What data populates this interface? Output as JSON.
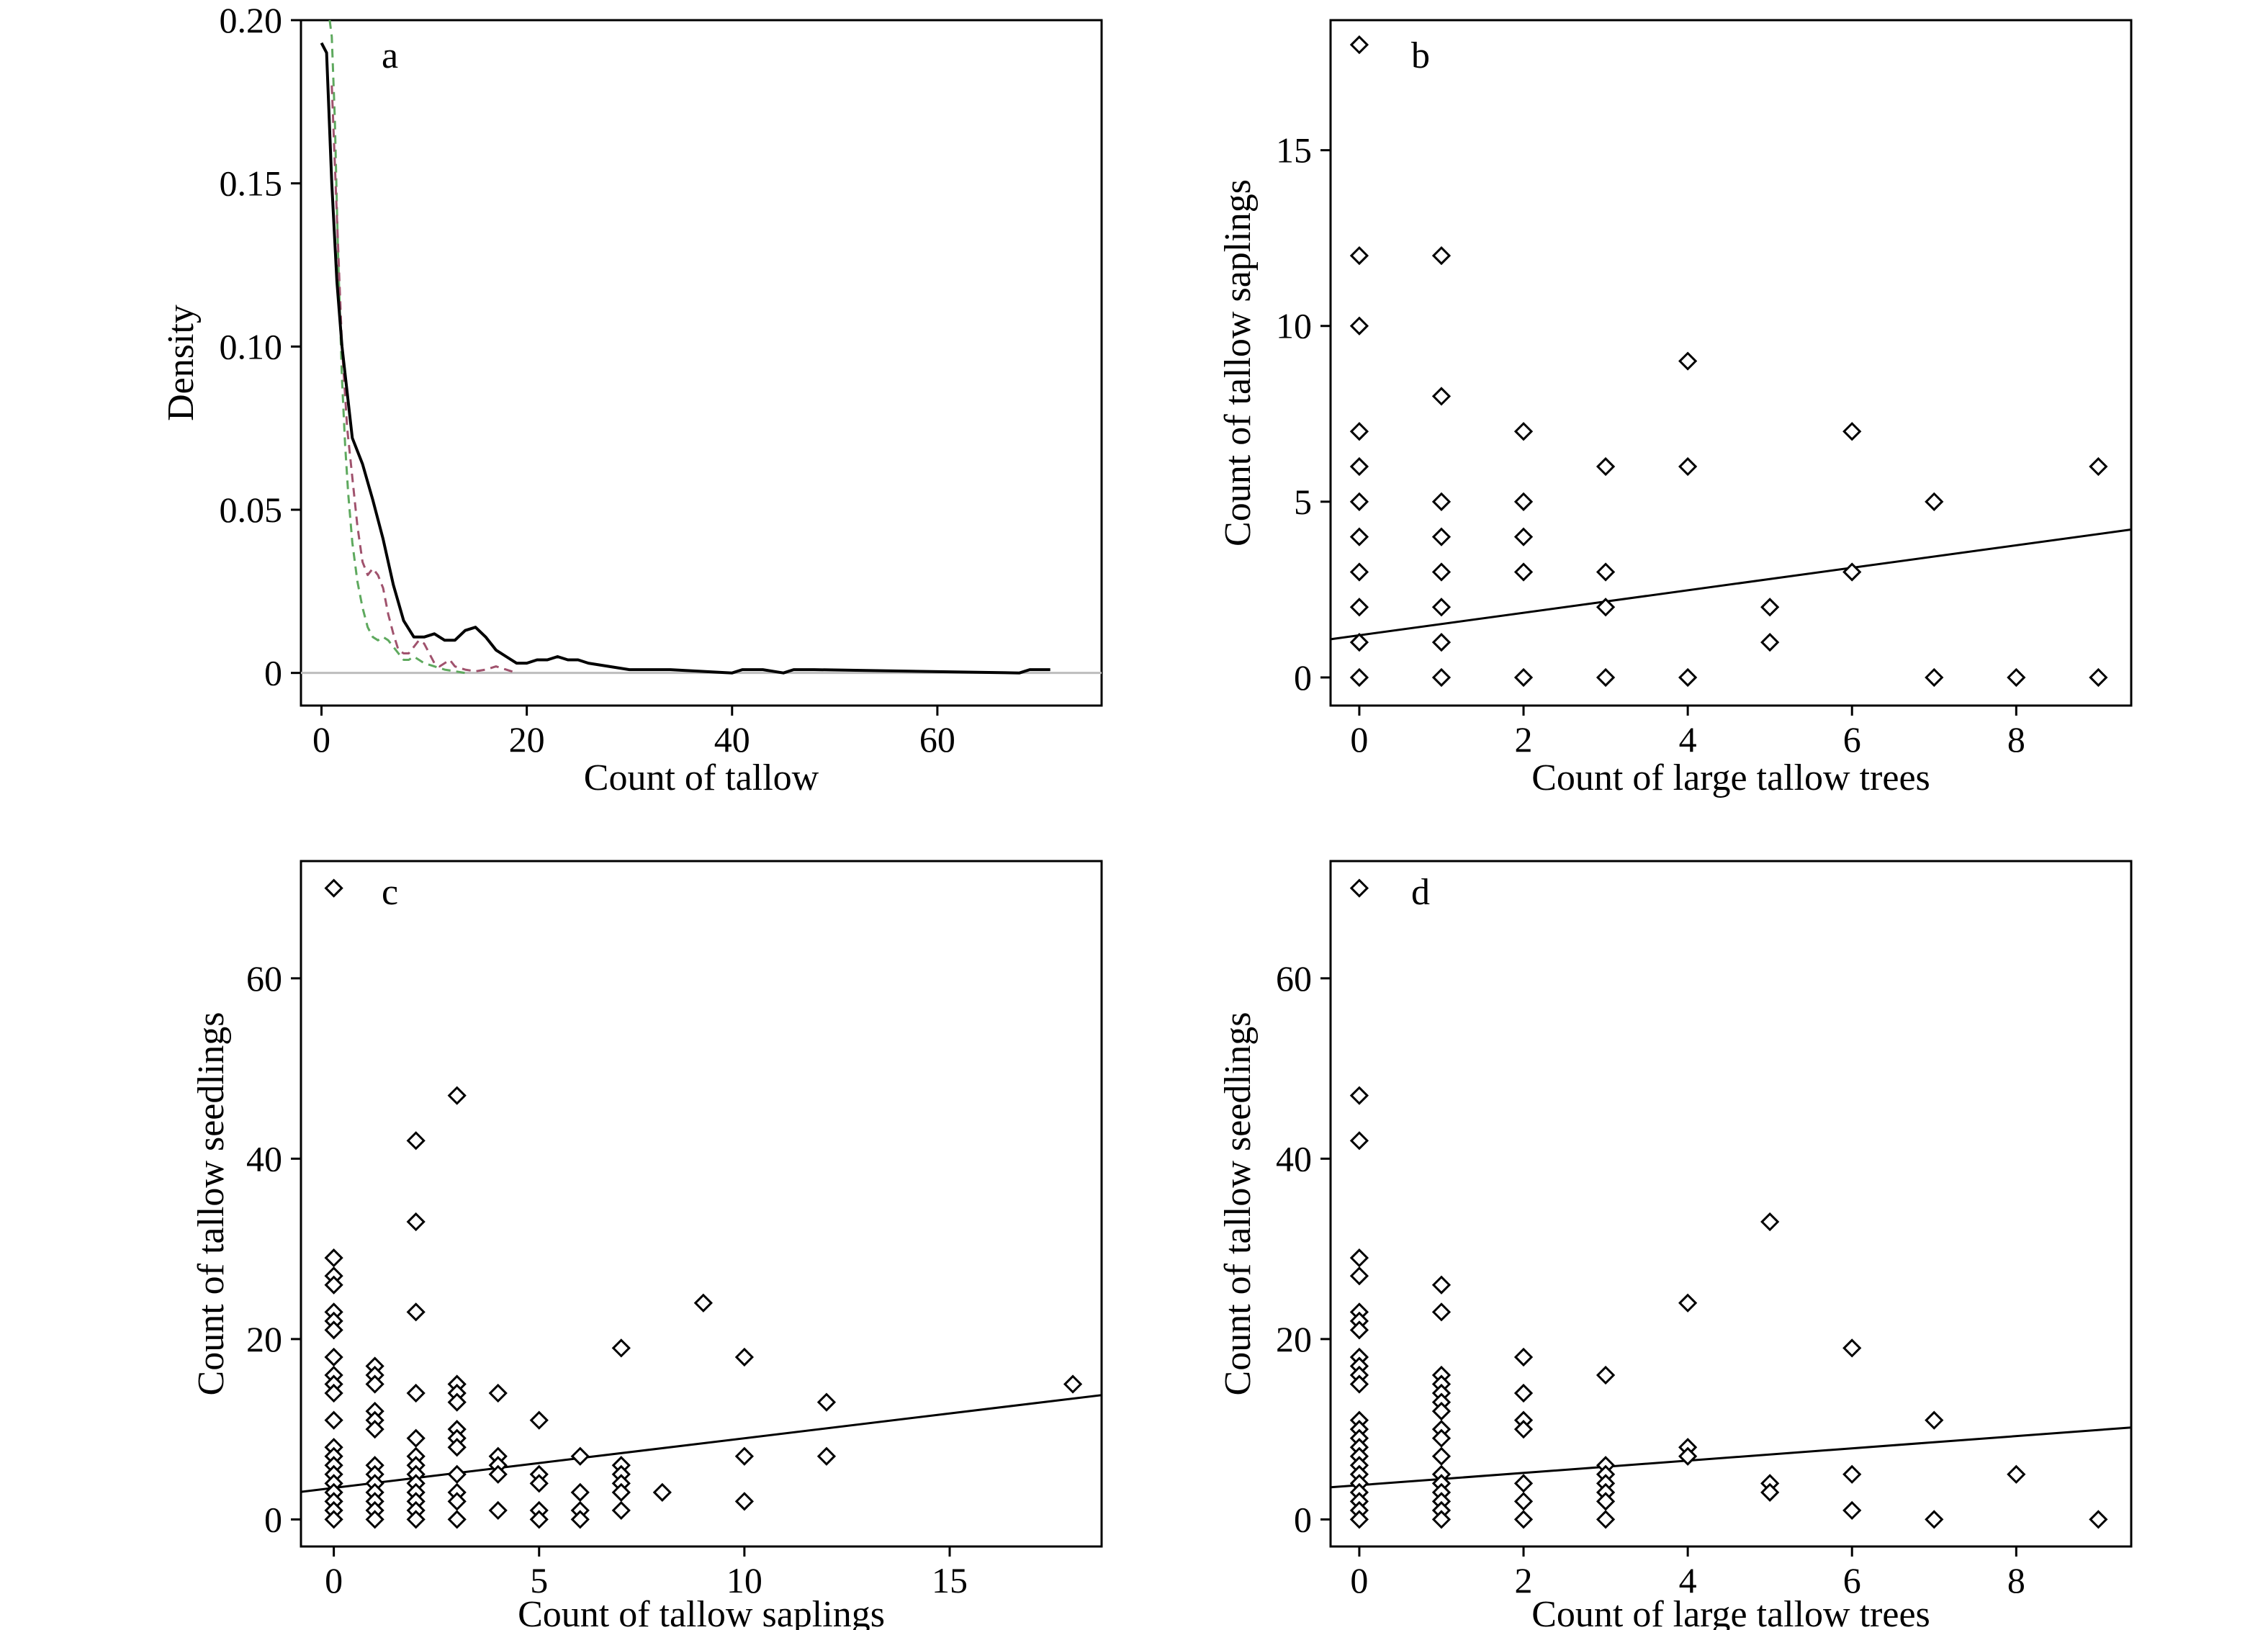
{
  "figure": {
    "panels": [
      {
        "key": "a",
        "label": "a"
      },
      {
        "key": "b",
        "label": "b"
      },
      {
        "key": "c",
        "label": "c"
      },
      {
        "key": "d",
        "label": "d"
      }
    ]
  },
  "chart_data": [
    {
      "panel": "a",
      "type": "line",
      "title": "",
      "xlabel": "Count of tallow",
      "ylabel": "Density",
      "xlim": [
        -2,
        76
      ],
      "ylim": [
        -0.01,
        0.2
      ],
      "xticks": [
        0,
        20,
        40,
        60
      ],
      "yticks": [
        0,
        0.05,
        0.1,
        0.15,
        0.2
      ],
      "ytick_labels": [
        "0",
        "0.05",
        "0.10",
        "0.15",
        "0.20"
      ],
      "grid": false,
      "legend": "none",
      "baseline": 0,
      "series": [
        {
          "color": "#000000",
          "dash": "solid",
          "x": [
            0,
            0.5,
            1,
            1.5,
            2,
            3,
            4,
            5,
            6,
            7,
            8,
            9,
            10,
            11,
            12,
            13,
            14,
            15,
            16,
            17,
            18,
            19,
            20,
            21,
            22,
            23,
            24,
            25,
            26,
            28,
            30,
            32,
            34,
            40,
            41,
            43,
            45,
            46,
            48,
            68,
            69,
            71
          ],
          "y": [
            0.193,
            0.19,
            0.15,
            0.12,
            0.1,
            0.072,
            0.064,
            0.053,
            0.041,
            0.027,
            0.016,
            0.011,
            0.011,
            0.012,
            0.01,
            0.01,
            0.013,
            0.014,
            0.011,
            0.007,
            0.005,
            0.003,
            0.003,
            0.004,
            0.004,
            0.005,
            0.004,
            0.004,
            0.003,
            0.002,
            0.001,
            0.001,
            0.001,
            0,
            0.001,
            0.001,
            0,
            0.001,
            0.001,
            0,
            0.001,
            0.001
          ]
        },
        {
          "color": "#a0526d",
          "dash": "dashed",
          "x": [
            1,
            1.5,
            2,
            2.5,
            3,
            3.5,
            4,
            4.5,
            5,
            5.5,
            6,
            6.5,
            7,
            7.5,
            8,
            8.5,
            9,
            9.5,
            10,
            10.5,
            11,
            11.5,
            12,
            12.5,
            13,
            14,
            15,
            16,
            17,
            18,
            19
          ],
          "y": [
            0.18,
            0.14,
            0.1,
            0.075,
            0.06,
            0.045,
            0.034,
            0.03,
            0.032,
            0.03,
            0.026,
            0.018,
            0.012,
            0.007,
            0.006,
            0.006,
            0.008,
            0.01,
            0.009,
            0.006,
            0.003,
            0.002,
            0.003,
            0.004,
            0.002,
            0.001,
            0.0005,
            0.001,
            0.002,
            0.001,
            0
          ]
        },
        {
          "color": "#5ea95e",
          "dash": "dashed",
          "x": [
            0.8,
            1,
            1.3,
            1.6,
            2,
            2.3,
            2.6,
            3,
            3.5,
            4,
            4.5,
            5,
            5.5,
            6,
            6.5,
            7,
            7.5,
            8,
            8.5,
            9,
            9.5,
            10,
            11,
            12,
            13,
            14
          ],
          "y": [
            0.2,
            0.195,
            0.17,
            0.13,
            0.09,
            0.07,
            0.055,
            0.04,
            0.028,
            0.02,
            0.014,
            0.011,
            0.01,
            0.011,
            0.01,
            0.008,
            0.006,
            0.004,
            0.004,
            0.005,
            0.004,
            0.003,
            0.002,
            0.001,
            0.0005,
            0
          ]
        }
      ]
    },
    {
      "panel": "b",
      "type": "scatter",
      "title": "",
      "xlabel": "Count of large tallow trees",
      "ylabel": "Count of tallow saplings",
      "xlim": [
        -0.35,
        9.4
      ],
      "ylim": [
        -0.8,
        18.7
      ],
      "xticks": [
        0,
        2,
        4,
        6,
        8
      ],
      "yticks": [
        0,
        5,
        10,
        15
      ],
      "grid": false,
      "legend": "none",
      "points": [
        [
          0,
          18
        ],
        [
          0,
          12
        ],
        [
          0,
          10
        ],
        [
          0,
          7
        ],
        [
          0,
          6
        ],
        [
          0,
          5
        ],
        [
          0,
          4
        ],
        [
          0,
          3
        ],
        [
          0,
          2
        ],
        [
          0,
          1
        ],
        [
          0,
          0
        ],
        [
          1,
          12
        ],
        [
          1,
          8
        ],
        [
          1,
          5
        ],
        [
          1,
          4
        ],
        [
          1,
          3
        ],
        [
          1,
          2
        ],
        [
          1,
          1
        ],
        [
          1,
          0
        ],
        [
          2,
          7
        ],
        [
          2,
          5
        ],
        [
          2,
          4
        ],
        [
          2,
          3
        ],
        [
          2,
          0
        ],
        [
          3,
          6
        ],
        [
          3,
          3
        ],
        [
          3,
          2
        ],
        [
          3,
          0
        ],
        [
          4,
          9
        ],
        [
          4,
          6
        ],
        [
          4,
          0
        ],
        [
          5,
          2
        ],
        [
          5,
          1
        ],
        [
          6,
          7
        ],
        [
          6,
          3
        ],
        [
          7,
          5
        ],
        [
          7,
          0
        ],
        [
          8,
          0
        ],
        [
          9,
          6
        ],
        [
          9,
          0
        ]
      ],
      "fit_line": {
        "intercept": 1.2,
        "slope": 0.32
      }
    },
    {
      "panel": "c",
      "type": "scatter",
      "title": "",
      "xlabel": "Count of tallow saplings",
      "ylabel": "Count of tallow seedlings",
      "xlim": [
        -0.8,
        18.7
      ],
      "ylim": [
        -3,
        73
      ],
      "xticks": [
        0,
        5,
        10,
        15
      ],
      "yticks": [
        0,
        20,
        40,
        60
      ],
      "grid": false,
      "legend": "none",
      "points": [
        [
          0,
          70
        ],
        [
          0,
          29
        ],
        [
          0,
          27
        ],
        [
          0,
          26
        ],
        [
          0,
          23
        ],
        [
          0,
          22
        ],
        [
          0,
          21
        ],
        [
          0,
          18
        ],
        [
          0,
          16
        ],
        [
          0,
          15
        ],
        [
          0,
          14
        ],
        [
          0,
          11
        ],
        [
          0,
          8
        ],
        [
          0,
          7
        ],
        [
          0,
          6
        ],
        [
          0,
          5
        ],
        [
          0,
          4
        ],
        [
          0,
          3
        ],
        [
          0,
          2
        ],
        [
          0,
          1
        ],
        [
          0,
          0
        ],
        [
          1,
          17
        ],
        [
          1,
          16
        ],
        [
          1,
          15
        ],
        [
          1,
          12
        ],
        [
          1,
          11
        ],
        [
          1,
          10
        ],
        [
          1,
          6
        ],
        [
          1,
          5
        ],
        [
          1,
          4
        ],
        [
          1,
          3
        ],
        [
          1,
          2
        ],
        [
          1,
          1
        ],
        [
          1,
          0
        ],
        [
          2,
          42
        ],
        [
          2,
          33
        ],
        [
          2,
          23
        ],
        [
          2,
          14
        ],
        [
          2,
          9
        ],
        [
          2,
          7
        ],
        [
          2,
          6
        ],
        [
          2,
          5
        ],
        [
          2,
          4
        ],
        [
          2,
          3
        ],
        [
          2,
          2
        ],
        [
          2,
          1
        ],
        [
          2,
          0
        ],
        [
          3,
          47
        ],
        [
          3,
          15
        ],
        [
          3,
          14
        ],
        [
          3,
          13
        ],
        [
          3,
          10
        ],
        [
          3,
          9
        ],
        [
          3,
          8
        ],
        [
          3,
          5
        ],
        [
          3,
          3
        ],
        [
          3,
          2
        ],
        [
          3,
          0
        ],
        [
          4,
          14
        ],
        [
          4,
          7
        ],
        [
          4,
          6
        ],
        [
          4,
          5
        ],
        [
          4,
          1
        ],
        [
          5,
          11
        ],
        [
          5,
          5
        ],
        [
          5,
          4
        ],
        [
          5,
          1
        ],
        [
          5,
          0
        ],
        [
          6,
          7
        ],
        [
          6,
          3
        ],
        [
          6,
          1
        ],
        [
          6,
          0
        ],
        [
          7,
          19
        ],
        [
          7,
          6
        ],
        [
          7,
          5
        ],
        [
          7,
          4
        ],
        [
          7,
          3
        ],
        [
          7,
          1
        ],
        [
          8,
          3
        ],
        [
          9,
          24
        ],
        [
          10,
          18
        ],
        [
          10,
          7
        ],
        [
          10,
          2
        ],
        [
          12,
          13
        ],
        [
          12,
          7
        ],
        [
          18,
          15
        ]
      ],
      "fit_line": {
        "intercept": 3.5,
        "slope": 0.55
      }
    },
    {
      "panel": "d",
      "type": "scatter",
      "title": "",
      "xlabel": "Count of large tallow trees",
      "ylabel": "Count of tallow seedlings",
      "xlim": [
        -0.35,
        9.4
      ],
      "ylim": [
        -3,
        73
      ],
      "xticks": [
        0,
        2,
        4,
        6,
        8
      ],
      "yticks": [
        0,
        20,
        40,
        60
      ],
      "grid": false,
      "legend": "none",
      "points": [
        [
          0,
          70
        ],
        [
          0,
          47
        ],
        [
          0,
          42
        ],
        [
          0,
          29
        ],
        [
          0,
          27
        ],
        [
          0,
          23
        ],
        [
          0,
          22
        ],
        [
          0,
          21
        ],
        [
          0,
          18
        ],
        [
          0,
          17
        ],
        [
          0,
          16
        ],
        [
          0,
          15
        ],
        [
          0,
          11
        ],
        [
          0,
          10
        ],
        [
          0,
          9
        ],
        [
          0,
          8
        ],
        [
          0,
          7
        ],
        [
          0,
          6
        ],
        [
          0,
          5
        ],
        [
          0,
          4
        ],
        [
          0,
          3
        ],
        [
          0,
          2
        ],
        [
          0,
          1
        ],
        [
          0,
          0
        ],
        [
          1,
          26
        ],
        [
          1,
          23
        ],
        [
          1,
          16
        ],
        [
          1,
          15
        ],
        [
          1,
          14
        ],
        [
          1,
          13
        ],
        [
          1,
          12
        ],
        [
          1,
          10
        ],
        [
          1,
          9
        ],
        [
          1,
          7
        ],
        [
          1,
          5
        ],
        [
          1,
          4
        ],
        [
          1,
          3
        ],
        [
          1,
          2
        ],
        [
          1,
          1
        ],
        [
          1,
          0
        ],
        [
          2,
          18
        ],
        [
          2,
          14
        ],
        [
          2,
          11
        ],
        [
          2,
          10
        ],
        [
          2,
          4
        ],
        [
          2,
          2
        ],
        [
          2,
          0
        ],
        [
          3,
          16
        ],
        [
          3,
          6
        ],
        [
          3,
          5
        ],
        [
          3,
          4
        ],
        [
          3,
          3
        ],
        [
          3,
          2
        ],
        [
          3,
          0
        ],
        [
          4,
          24
        ],
        [
          4,
          8
        ],
        [
          4,
          7
        ],
        [
          5,
          33
        ],
        [
          5,
          4
        ],
        [
          5,
          3
        ],
        [
          6,
          19
        ],
        [
          6,
          5
        ],
        [
          6,
          1
        ],
        [
          7,
          11
        ],
        [
          7,
          0
        ],
        [
          8,
          5
        ],
        [
          9,
          0
        ]
      ],
      "fit_line": {
        "intercept": 3.8,
        "slope": 0.68
      }
    }
  ]
}
